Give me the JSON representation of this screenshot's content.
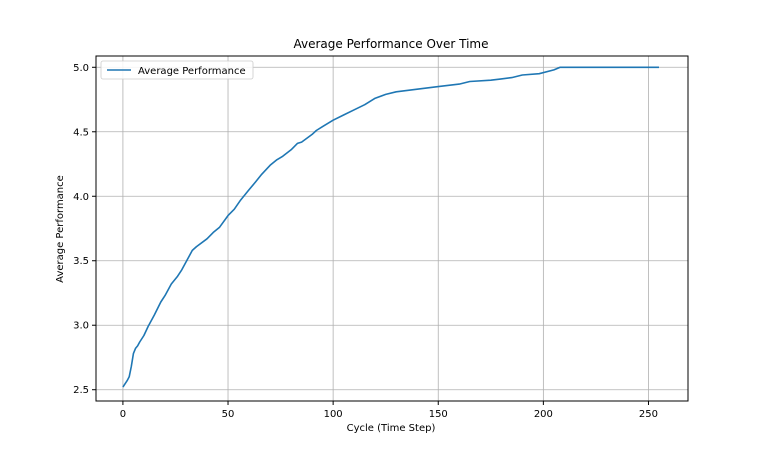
{
  "chart_data": {
    "type": "line",
    "title": "Average Performance Over Time",
    "xlabel": "Cycle (Time Step)",
    "ylabel": "Average Performance",
    "xlim": [
      -12.8,
      268.8
    ],
    "ylim": [
      2.4125,
      5.0875
    ],
    "xticks": [
      0,
      50,
      100,
      150,
      200,
      250
    ],
    "yticks": [
      2.5,
      3.0,
      3.5,
      4.0,
      4.5,
      5.0
    ],
    "xtick_labels": [
      "0",
      "50",
      "100",
      "150",
      "200",
      "250"
    ],
    "ytick_labels": [
      "2.5",
      "3.0",
      "3.5",
      "4.0",
      "4.5",
      "5.0"
    ],
    "grid": true,
    "legend_position": "top-left",
    "series": [
      {
        "name": "Average Performance",
        "color": "#1f77b4",
        "x": [
          0,
          2,
          3,
          4,
          5,
          6,
          7,
          8,
          10,
          12,
          15,
          18,
          20,
          23,
          26,
          28,
          30,
          33,
          35,
          40,
          43,
          46,
          50,
          53,
          56,
          60,
          63,
          66,
          70,
          73,
          76,
          80,
          83,
          85,
          90,
          92,
          95,
          100,
          105,
          110,
          115,
          120,
          125,
          130,
          140,
          150,
          155,
          160,
          165,
          175,
          180,
          185,
          190,
          198,
          205,
          208,
          215,
          230,
          250,
          255
        ],
        "y": [
          2.52,
          2.57,
          2.6,
          2.68,
          2.78,
          2.82,
          2.84,
          2.87,
          2.92,
          2.99,
          3.08,
          3.18,
          3.23,
          3.32,
          3.38,
          3.43,
          3.49,
          3.58,
          3.61,
          3.67,
          3.72,
          3.76,
          3.85,
          3.9,
          3.97,
          4.05,
          4.11,
          4.17,
          4.24,
          4.28,
          4.31,
          4.36,
          4.41,
          4.42,
          4.48,
          4.51,
          4.54,
          4.59,
          4.63,
          4.67,
          4.71,
          4.76,
          4.79,
          4.81,
          4.83,
          4.85,
          4.86,
          4.87,
          4.89,
          4.9,
          4.91,
          4.92,
          4.94,
          4.95,
          4.98,
          5.0,
          5.0,
          5.0,
          5.0,
          5.0
        ]
      }
    ]
  }
}
